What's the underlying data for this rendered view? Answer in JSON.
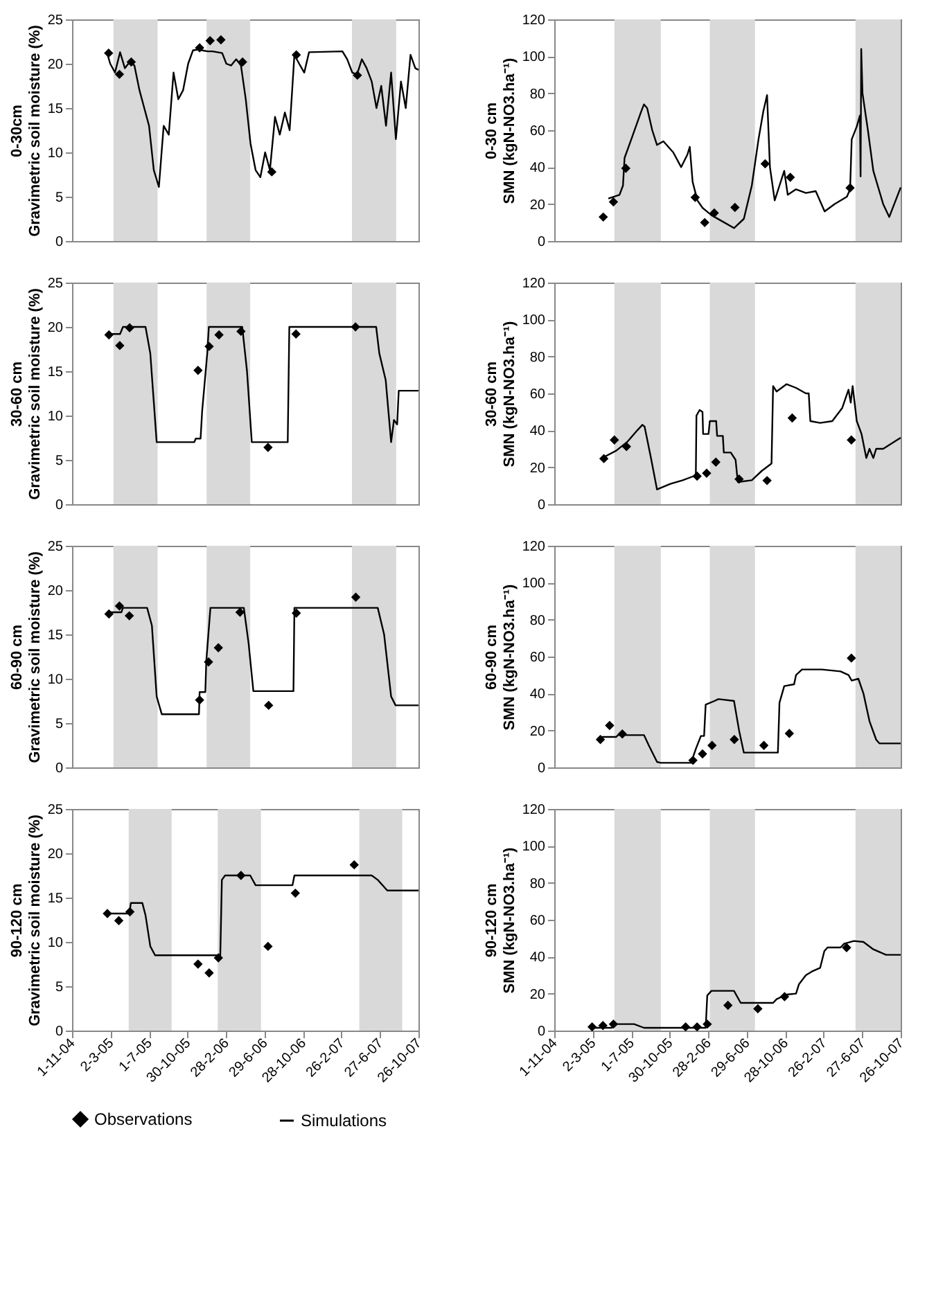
{
  "chart_data": [
    {
      "type": "line",
      "ylabel": "0-30cm\nGravimetric soil moisture (%)",
      "xlim": [
        "2004-11-01",
        "2007-10-26"
      ],
      "ylim": [
        0,
        25
      ],
      "yticks": [
        0,
        5,
        10,
        15,
        20,
        25
      ],
      "tick_labels": "y",
      "grid": false,
      "bands": [
        {
          "axis": "x",
          "from": "2005-03-11",
          "to": "2005-07-28",
          "color": "#d9d9d9"
        },
        {
          "axis": "x",
          "from": "2005-12-29",
          "to": "2006-05-15",
          "color": "#d9d9d9"
        },
        {
          "axis": "x",
          "from": "2007-03-31",
          "to": "2007-08-17",
          "color": "#d9d9d9"
        }
      ],
      "series": [
        {
          "type": "line",
          "color": "#000000",
          "line_style": "solid",
          "marker": "none",
          "x": [
            "2005-02-20",
            "2005-03-01",
            "2005-03-16",
            "2005-04-01",
            "2005-04-16",
            "2005-05-01",
            "2005-05-16",
            "2005-06-01",
            "2005-06-16",
            "2005-07-01",
            "2005-07-16",
            "2005-08-01",
            "2005-08-16",
            "2005-09-01",
            "2005-09-16",
            "2005-10-01",
            "2005-10-16",
            "2005-11-01",
            "2005-11-16",
            "2005-12-01",
            "2005-12-16",
            "2006-01-01",
            "2006-01-16",
            "2006-02-01",
            "2006-02-16",
            "2006-03-01",
            "2006-03-16",
            "2006-04-01",
            "2006-04-16",
            "2006-05-01",
            "2006-05-16",
            "2006-06-01",
            "2006-06-16",
            "2006-07-01",
            "2006-07-16",
            "2006-08-01",
            "2006-08-16",
            "2006-09-01",
            "2006-09-16",
            "2006-10-01",
            "2006-10-16",
            "2006-11-01",
            "2006-11-16",
            "2007-03-01",
            "2007-03-16",
            "2007-04-01",
            "2007-04-16",
            "2007-05-01",
            "2007-05-16",
            "2007-06-01",
            "2007-06-16",
            "2007-07-01",
            "2007-07-16",
            "2007-08-01",
            "2007-08-16",
            "2007-09-01",
            "2007-09-16",
            "2007-10-01",
            "2007-10-16",
            "2007-10-26"
          ],
          "values": [
            21.1,
            20.0,
            19.0,
            21.3,
            19.5,
            20.2,
            19.8,
            17.0,
            15.0,
            13.0,
            8.0,
            6.1,
            13.0,
            12.0,
            19.0,
            16.0,
            17.0,
            20.0,
            21.5,
            21.6,
            21.5,
            21.4,
            21.4,
            21.3,
            21.2,
            20.0,
            19.8,
            20.5,
            19.8,
            16.0,
            11.0,
            8.0,
            7.2,
            10.0,
            8.0,
            14.0,
            12.0,
            14.5,
            12.5,
            21.0,
            20.0,
            19.0,
            21.3,
            21.4,
            20.5,
            19.0,
            18.8,
            20.5,
            19.5,
            18.0,
            15.0,
            17.5,
            13.0,
            19.0,
            11.5,
            18.0,
            15.0,
            21.0,
            19.5,
            19.3
          ]
        },
        {
          "type": "scatter",
          "color": "#000000",
          "marker": "diamond",
          "x": [
            "2005-02-24",
            "2005-03-30",
            "2005-05-06",
            "2005-12-07",
            "2006-01-09",
            "2006-02-12",
            "2006-04-21",
            "2006-07-22",
            "2006-10-07",
            "2007-04-17"
          ],
          "values": [
            21.2,
            18.8,
            20.2,
            21.8,
            22.6,
            22.7,
            20.2,
            7.8,
            21.0,
            18.7
          ]
        }
      ]
    },
    {
      "type": "line",
      "ylabel": "0-30 cm\nSMN (kgN-NO3.ha⁻¹)",
      "xlim": [
        "2004-11-01",
        "2007-10-26"
      ],
      "ylim": [
        0,
        120
      ],
      "yticks": [
        0,
        20,
        40,
        60,
        80,
        100,
        120
      ],
      "tick_labels": "y",
      "grid": false,
      "bands": [
        {
          "axis": "x",
          "from": "2005-05-09",
          "to": "2005-10-02",
          "color": "#d9d9d9"
        },
        {
          "axis": "x",
          "from": "2006-03-05",
          "to": "2006-07-25",
          "color": "#d9d9d9"
        },
        {
          "axis": "x",
          "from": "2007-06-06",
          "to": "2007-10-26",
          "color": "#d9d9d9"
        }
      ],
      "series": [
        {
          "type": "line",
          "color": "#000000",
          "line_style": "solid",
          "marker": "none",
          "x": [
            "2005-04-20",
            "2005-05-25",
            "2005-06-05",
            "2005-06-10",
            "2005-07-01",
            "2005-08-01",
            "2005-08-10",
            "2005-08-20",
            "2005-09-05",
            "2005-09-20",
            "2005-10-10",
            "2005-11-10",
            "2005-12-05",
            "2005-12-25",
            "2006-01-01",
            "2006-01-10",
            "2006-01-25",
            "2006-02-10",
            "2006-03-10",
            "2006-04-20",
            "2006-05-20",
            "2006-06-20",
            "2006-07-15",
            "2006-08-05",
            "2006-08-20",
            "2006-09-01",
            "2006-09-10",
            "2006-09-25",
            "2006-10-10",
            "2006-10-25",
            "2006-11-05",
            "2006-12-01",
            "2007-01-01",
            "2007-02-01",
            "2007-03-01",
            "2007-04-01",
            "2007-05-10",
            "2007-05-20",
            "2007-05-25",
            "2007-06-10",
            "2007-06-20",
            "2007-06-22",
            "2007-06-24",
            "2007-06-28",
            "2007-07-15",
            "2007-08-01",
            "2007-09-01",
            "2007-09-20",
            "2007-10-26"
          ],
          "values": [
            23,
            25,
            30,
            45,
            55,
            70,
            74,
            72,
            60,
            52,
            54,
            48,
            40,
            47,
            51,
            32,
            22,
            18,
            14,
            10,
            7,
            12,
            30,
            55,
            70,
            79,
            40,
            22,
            30,
            38,
            25,
            28,
            26,
            27,
            16,
            20,
            24,
            28,
            55,
            62,
            68,
            35,
            104,
            80,
            60,
            38,
            20,
            13,
            29
          ]
        },
        {
          "type": "scatter",
          "color": "#000000",
          "marker": "diamond",
          "x": [
            "2005-04-04",
            "2005-05-06",
            "2005-06-14",
            "2006-01-18",
            "2006-02-17",
            "2006-03-19",
            "2006-05-23",
            "2006-08-26",
            "2006-11-13",
            "2007-05-20"
          ],
          "values": [
            13.0,
            21.2,
            39.4,
            23.6,
            10.0,
            15.2,
            18.2,
            41.8,
            34.5,
            28.8
          ]
        }
      ]
    },
    {
      "type": "line",
      "ylabel": "30-60 cm\nGravimetric soil moisture (%)",
      "xlim": [
        "2004-11-01",
        "2007-10-26"
      ],
      "ylim": [
        0,
        25
      ],
      "yticks": [
        0,
        5,
        10,
        15,
        20,
        25
      ],
      "tick_labels": "y",
      "grid": false,
      "bands": [
        {
          "axis": "x",
          "from": "2005-03-11",
          "to": "2005-07-28",
          "color": "#d9d9d9"
        },
        {
          "axis": "x",
          "from": "2005-12-29",
          "to": "2006-05-15",
          "color": "#d9d9d9"
        },
        {
          "axis": "x",
          "from": "2007-03-31",
          "to": "2007-08-17",
          "color": "#d9d9d9"
        }
      ],
      "series": [
        {
          "type": "line",
          "color": "#000000",
          "line_style": "solid",
          "marker": "none",
          "x": [
            "2005-02-20",
            "2005-04-01",
            "2005-04-10",
            "2005-06-20",
            "2005-07-05",
            "2005-07-15",
            "2005-07-25",
            "2005-11-20",
            "2005-11-25",
            "2005-12-10",
            "2005-12-15",
            "2005-12-31",
            "2006-01-05",
            "2006-04-20",
            "2006-05-05",
            "2006-05-20",
            "2006-09-10",
            "2006-09-15",
            "2007-06-15",
            "2007-06-25",
            "2007-07-15",
            "2007-08-01",
            "2007-08-10",
            "2007-08-20",
            "2007-08-25",
            "2007-10-26"
          ],
          "values": [
            19.2,
            19.2,
            20.0,
            20.0,
            17.0,
            12.0,
            7.0,
            7.0,
            7.4,
            7.4,
            10.5,
            17.0,
            20.0,
            20.0,
            15.0,
            7.0,
            7.0,
            20.0,
            20.0,
            17.0,
            14.0,
            7.0,
            9.5,
            9.0,
            12.8,
            12.8
          ]
        },
        {
          "type": "scatter",
          "color": "#000000",
          "marker": "diamond",
          "x": [
            "2005-02-25",
            "2005-03-31",
            "2005-05-01",
            "2005-12-02",
            "2006-01-06",
            "2006-02-06",
            "2006-04-16",
            "2006-07-10",
            "2006-10-06",
            "2007-04-11"
          ],
          "values": [
            19.1,
            17.9,
            19.9,
            15.1,
            17.8,
            19.1,
            19.5,
            6.4,
            19.2,
            20.0
          ]
        }
      ]
    },
    {
      "type": "line",
      "ylabel": "30-60 cm\nSMN (kgN-NO3.ha⁻¹)",
      "xlim": [
        "2004-11-01",
        "2007-10-26"
      ],
      "ylim": [
        0,
        120
      ],
      "yticks": [
        0,
        20,
        40,
        60,
        80,
        100,
        120
      ],
      "tick_labels": "y",
      "grid": false,
      "bands": [
        {
          "axis": "x",
          "from": "2005-05-09",
          "to": "2005-10-02",
          "color": "#d9d9d9"
        },
        {
          "axis": "x",
          "from": "2006-03-05",
          "to": "2006-07-25",
          "color": "#d9d9d9"
        },
        {
          "axis": "x",
          "from": "2007-06-06",
          "to": "2007-10-26",
          "color": "#d9d9d9"
        }
      ],
      "series": [
        {
          "type": "line",
          "color": "#000000",
          "line_style": "solid",
          "marker": "none",
          "x": [
            "2005-04-06",
            "2005-05-15",
            "2005-06-20",
            "2005-07-20",
            "2005-08-05",
            "2005-08-12",
            "2005-09-01",
            "2005-09-20",
            "2005-11-01",
            "2005-12-10",
            "2006-01-10",
            "2006-01-20",
            "2006-01-22",
            "2006-02-01",
            "2006-02-10",
            "2006-02-12",
            "2006-03-01",
            "2006-03-05",
            "2006-03-25",
            "2006-03-28",
            "2006-04-15",
            "2006-04-18",
            "2006-05-10",
            "2006-05-25",
            "2006-06-01",
            "2006-07-15",
            "2006-08-15",
            "2006-09-15",
            "2006-09-20",
            "2006-10-01",
            "2006-11-01",
            "2006-12-01",
            "2007-01-01",
            "2007-01-10",
            "2007-01-15",
            "2007-02-15",
            "2007-03-25",
            "2007-04-25",
            "2007-05-15",
            "2007-05-22",
            "2007-05-28",
            "2007-06-10",
            "2007-06-25",
            "2007-07-10",
            "2007-07-20",
            "2007-08-01",
            "2007-08-10",
            "2007-09-01",
            "2007-10-26"
          ],
          "values": [
            25.5,
            29,
            34,
            40,
            43,
            42,
            25,
            8,
            11,
            13,
            15,
            15,
            48,
            51,
            50,
            38,
            38,
            45,
            45,
            37,
            37,
            28,
            28,
            24,
            12,
            13,
            18,
            22,
            64,
            61,
            65,
            63,
            60,
            60,
            45,
            44,
            45,
            52,
            62,
            55,
            64,
            45,
            38,
            25,
            30,
            25,
            30,
            30,
            36
          ]
        },
        {
          "type": "scatter",
          "color": "#000000",
          "marker": "diamond",
          "x": [
            "2005-04-06",
            "2005-05-09",
            "2005-06-16",
            "2006-01-24",
            "2006-02-23",
            "2006-03-24",
            "2006-06-05",
            "2006-09-01",
            "2006-11-19",
            "2007-05-24"
          ],
          "values": [
            24.7,
            34.8,
            31.2,
            15.2,
            16.8,
            22.8,
            13.6,
            12.8,
            46.7,
            34.8
          ]
        }
      ]
    },
    {
      "type": "line",
      "ylabel": "60-90 cm\nGravimetric soil moisture (%)",
      "xlim": [
        "2004-11-01",
        "2007-10-26"
      ],
      "ylim": [
        0,
        25
      ],
      "yticks": [
        0,
        5,
        10,
        15,
        20,
        25
      ],
      "tick_labels": "y",
      "grid": false,
      "bands": [
        {
          "axis": "x",
          "from": "2005-03-11",
          "to": "2005-07-28",
          "color": "#d9d9d9"
        },
        {
          "axis": "x",
          "from": "2005-12-29",
          "to": "2006-05-15",
          "color": "#d9d9d9"
        },
        {
          "axis": "x",
          "from": "2007-03-31",
          "to": "2007-08-17",
          "color": "#d9d9d9"
        }
      ],
      "series": [
        {
          "type": "line",
          "color": "#000000",
          "line_style": "solid",
          "marker": "none",
          "x": [
            "2005-02-20",
            "2005-04-05",
            "2005-04-10",
            "2005-06-25",
            "2005-07-10",
            "2005-07-25",
            "2005-08-10",
            "2005-12-05",
            "2005-12-07",
            "2005-12-25",
            "2005-12-28",
            "2006-01-10",
            "2006-04-25",
            "2006-05-10",
            "2006-05-25",
            "2006-09-28",
            "2006-10-01",
            "2007-06-20",
            "2007-07-10",
            "2007-08-01",
            "2007-08-15",
            "2007-10-26"
          ],
          "values": [
            17.5,
            17.5,
            18.0,
            18.0,
            16.0,
            8.0,
            6.0,
            6.0,
            8.5,
            8.5,
            12.0,
            18.0,
            18.0,
            14.0,
            8.6,
            8.6,
            18.0,
            18.0,
            15.0,
            8.0,
            7.0,
            7.0
          ]
        },
        {
          "type": "scatter",
          "color": "#000000",
          "marker": "diamond",
          "x": [
            "2005-02-25",
            "2005-03-30",
            "2005-04-30",
            "2005-12-07",
            "2006-01-04",
            "2006-02-04",
            "2006-04-13",
            "2006-07-12",
            "2006-10-07",
            "2007-04-12"
          ],
          "values": [
            17.3,
            18.2,
            17.1,
            7.6,
            11.9,
            13.5,
            17.5,
            7.0,
            17.4,
            19.2
          ]
        }
      ]
    },
    {
      "type": "line",
      "ylabel": "60-90 cm\nSMN (kgN-NO3.ha⁻¹)",
      "xlim": [
        "2004-11-01",
        "2007-10-26"
      ],
      "ylim": [
        0,
        120
      ],
      "yticks": [
        0,
        20,
        40,
        60,
        80,
        100,
        120
      ],
      "tick_labels": "y",
      "grid": false,
      "bands": [
        {
          "axis": "x",
          "from": "2005-05-09",
          "to": "2005-10-02",
          "color": "#d9d9d9"
        },
        {
          "axis": "x",
          "from": "2006-03-05",
          "to": "2006-07-25",
          "color": "#d9d9d9"
        },
        {
          "axis": "x",
          "from": "2007-06-06",
          "to": "2007-10-26",
          "color": "#d9d9d9"
        }
      ],
      "series": [
        {
          "type": "line",
          "color": "#000000",
          "line_style": "solid",
          "marker": "none",
          "x": [
            "2005-03-26",
            "2005-05-15",
            "2005-05-20",
            "2005-08-10",
            "2005-08-25",
            "2005-09-20",
            "2005-10-01",
            "2006-01-05",
            "2006-01-20",
            "2006-02-05",
            "2006-02-15",
            "2006-02-20",
            "2006-03-20",
            "2006-04-01",
            "2006-05-20",
            "2006-06-05",
            "2006-06-20",
            "2006-10-05",
            "2006-10-10",
            "2006-10-25",
            "2006-11-25",
            "2006-12-01",
            "2006-12-20",
            "2007-02-20",
            "2007-04-20",
            "2007-05-15",
            "2007-05-25",
            "2007-06-15",
            "2007-07-01",
            "2007-07-20",
            "2007-08-10",
            "2007-08-20",
            "2007-10-26"
          ],
          "values": [
            16.5,
            16.5,
            17.5,
            17.5,
            12,
            3,
            2.5,
            2.5,
            10,
            17,
            17,
            34,
            36,
            37,
            36,
            20,
            8,
            8,
            35,
            44,
            45,
            50,
            53,
            53,
            52,
            50,
            47,
            48,
            40,
            25,
            15,
            13,
            13
          ]
        },
        {
          "type": "scatter",
          "color": "#000000",
          "marker": "diamond",
          "x": [
            "2005-03-26",
            "2005-04-24",
            "2005-06-03",
            "2006-01-11",
            "2006-02-10",
            "2006-03-12",
            "2006-05-21",
            "2006-08-22",
            "2006-11-10",
            "2007-05-24"
          ],
          "values": [
            15.1,
            22.7,
            18.1,
            3.8,
            7.3,
            11.9,
            15.1,
            11.9,
            18.4,
            59.2
          ]
        }
      ]
    },
    {
      "type": "line",
      "ylabel": "90-120 cm\nGravimetric soil moisture (%)",
      "xlim": [
        "2004-11-01",
        "2007-10-26"
      ],
      "ylim": [
        0,
        25
      ],
      "yticks": [
        0,
        5,
        10,
        15,
        20,
        25
      ],
      "grid": false,
      "legend": "bottom",
      "xticks": [
        {
          "value": "2004-11-01",
          "label": "1-11-04"
        },
        {
          "value": "2005-03-02",
          "label": "2-3-05"
        },
        {
          "value": "2005-07-01",
          "label": "1-7-05"
        },
        {
          "value": "2005-10-30",
          "label": "30-10-05"
        },
        {
          "value": "2006-02-28",
          "label": "28-2-06"
        },
        {
          "value": "2006-06-29",
          "label": "29-6-06"
        },
        {
          "value": "2006-10-28",
          "label": "28-10-06"
        },
        {
          "value": "2007-02-26",
          "label": "26-2-07"
        },
        {
          "value": "2007-06-27",
          "label": "27-6-07"
        },
        {
          "value": "2007-10-26",
          "label": "26-10-07"
        }
      ],
      "bands": [
        {
          "axis": "x",
          "from": "2005-04-28",
          "to": "2005-09-10",
          "color": "#d9d9d9"
        },
        {
          "axis": "x",
          "from": "2006-02-02",
          "to": "2006-06-18",
          "color": "#d9d9d9"
        },
        {
          "axis": "x",
          "from": "2007-04-23",
          "to": "2007-09-05",
          "color": "#d9d9d9"
        }
      ],
      "series": [
        {
          "name": "Observations",
          "type": "scatter",
          "color": "#000000",
          "marker": "diamond",
          "x": [
            "2005-02-20",
            "2005-03-28",
            "2005-05-02",
            "2005-12-02",
            "2006-01-06",
            "2006-02-04",
            "2006-04-16",
            "2006-07-10",
            "2006-10-04",
            "2007-04-07"
          ],
          "values": [
            13.2,
            12.4,
            13.4,
            7.5,
            6.5,
            8.2,
            17.5,
            9.5,
            15.5,
            18.7
          ]
        },
        {
          "name": "Simulations",
          "type": "line",
          "color": "#000000",
          "line_style": "solid",
          "marker": "none",
          "x": [
            "2005-02-20",
            "2005-04-30",
            "2005-05-05",
            "2005-06-10",
            "2005-06-20",
            "2005-07-05",
            "2005-07-20",
            "2006-02-10",
            "2006-02-15",
            "2006-02-25",
            "2006-05-15",
            "2006-06-01",
            "2006-09-25",
            "2006-10-01",
            "2007-06-01",
            "2007-06-20",
            "2007-07-20",
            "2007-10-26"
          ],
          "values": [
            13.2,
            13.2,
            14.4,
            14.4,
            13.0,
            9.5,
            8.5,
            8.5,
            17.0,
            17.5,
            17.5,
            16.4,
            16.4,
            17.5,
            17.5,
            17.0,
            15.8,
            15.8
          ]
        }
      ]
    },
    {
      "type": "line",
      "ylabel": "90-120 cm\nSMN (kgN-NO3.ha⁻¹)",
      "xlim": [
        "2004-11-01",
        "2007-10-26"
      ],
      "ylim": [
        0,
        120
      ],
      "yticks": [
        0,
        20,
        40,
        60,
        80,
        100,
        120
      ],
      "grid": false,
      "legend": "bottom",
      "xticks": [
        {
          "value": "2004-11-01",
          "label": "1-11-04"
        },
        {
          "value": "2005-03-02",
          "label": "2-3-05"
        },
        {
          "value": "2005-07-01",
          "label": "1-7-05"
        },
        {
          "value": "2005-10-30",
          "label": "30-10-05"
        },
        {
          "value": "2006-02-28",
          "label": "28-2-06"
        },
        {
          "value": "2006-06-29",
          "label": "29-6-06"
        },
        {
          "value": "2006-10-28",
          "label": "28-10-06"
        },
        {
          "value": "2007-02-26",
          "label": "26-2-07"
        },
        {
          "value": "2007-06-27",
          "label": "27-6-07"
        },
        {
          "value": "2007-10-26",
          "label": "26-10-07"
        }
      ],
      "bands": [
        {
          "axis": "x",
          "from": "2005-05-09",
          "to": "2005-10-02",
          "color": "#d9d9d9"
        },
        {
          "axis": "x",
          "from": "2006-03-05",
          "to": "2006-07-25",
          "color": "#d9d9d9"
        },
        {
          "axis": "x",
          "from": "2007-06-06",
          "to": "2007-10-26",
          "color": "#d9d9d9"
        }
      ],
      "series": [
        {
          "name": "Observations",
          "type": "scatter",
          "color": "#000000",
          "marker": "diamond",
          "x": [
            "2005-02-28",
            "2005-04-03",
            "2005-05-06",
            "2005-12-19",
            "2006-01-24",
            "2006-02-25",
            "2006-05-01",
            "2006-08-03",
            "2006-10-26",
            "2007-05-09"
          ],
          "values": [
            2.0,
            2.7,
            3.5,
            2.0,
            2.0,
            3.5,
            13.7,
            11.8,
            18.4,
            44.9
          ]
        },
        {
          "name": "Simulations",
          "type": "line",
          "color": "#000000",
          "line_style": "solid",
          "marker": "none",
          "x": [
            "2005-02-28",
            "2005-05-01",
            "2005-05-05",
            "2005-07-10",
            "2005-08-10",
            "2006-02-20",
            "2006-02-25",
            "2006-03-10",
            "2006-05-20",
            "2006-06-10",
            "2006-09-20",
            "2006-10-01",
            "2006-11-01",
            "2006-12-01",
            "2006-12-10",
            "2007-01-01",
            "2007-01-20",
            "2007-02-15",
            "2007-02-28",
            "2007-03-10",
            "2007-04-20",
            "2007-05-01",
            "2007-06-01",
            "2007-07-01",
            "2007-08-01",
            "2007-09-10",
            "2007-10-26"
          ],
          "values": [
            1.5,
            1.5,
            3.5,
            3.5,
            1.5,
            1.5,
            19,
            21.5,
            21.5,
            15,
            15,
            17,
            19.5,
            20,
            25,
            30,
            32,
            34,
            43,
            45,
            45,
            47,
            48.5,
            48,
            44,
            41,
            41
          ]
        }
      ]
    }
  ]
}
